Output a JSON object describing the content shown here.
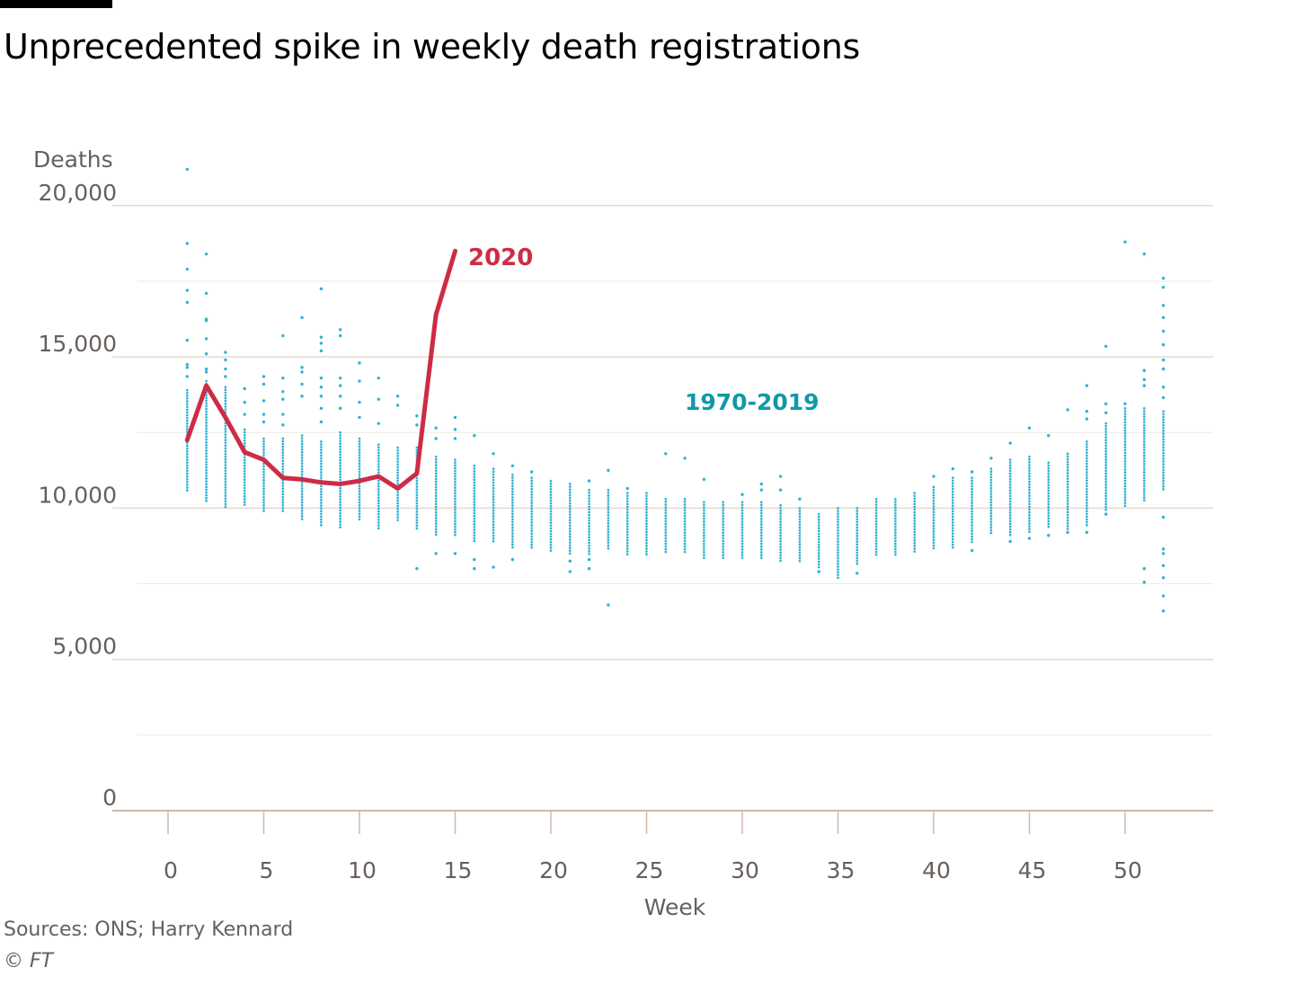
{
  "title": "Unprecedented spike in weekly death registrations",
  "source": "Sources: ONS; Harry Kennard",
  "copyright": "© FT",
  "colors": {
    "line_2020": "#cc2c45",
    "historic": "#2fb3d4",
    "historic_label": "#0f99a8",
    "grid": "#e6d9ce",
    "axis_text": "#66605c"
  },
  "chart_data": {
    "type": "scatter",
    "title": "Unprecedented spike in weekly death registrations",
    "xlabel": "Week",
    "ylabel": "Deaths",
    "xlim": [
      -1.5,
      54
    ],
    "ylim": [
      0,
      22000
    ],
    "x_ticks": [
      0,
      5,
      10,
      15,
      20,
      25,
      30,
      35,
      40,
      45,
      50
    ],
    "x_tick_labels": [
      "0",
      "5",
      "10",
      "15",
      "20",
      "25",
      "30",
      "35",
      "40",
      "45",
      "50"
    ],
    "y_ticks": [
      0,
      5000,
      10000,
      15000,
      20000
    ],
    "y_tick_labels": [
      "0",
      "5,000",
      "10,000",
      "15,000",
      "20,000"
    ],
    "y_minor_grid": [
      2500,
      7500,
      12500,
      17500
    ],
    "grid": true,
    "series": [
      {
        "name": "2020",
        "kind": "line",
        "x": [
          1,
          2,
          3,
          4,
          5,
          6,
          7,
          8,
          9,
          10,
          11,
          12,
          13,
          14,
          15
        ],
        "y": [
          12250,
          14050,
          13000,
          11850,
          11600,
          11000,
          10950,
          10850,
          10800,
          10900,
          11050,
          10650,
          11150,
          16400,
          18500
        ]
      },
      {
        "name": "1970-2019",
        "kind": "dots",
        "weeks": [
          {
            "week": 1,
            "min": 10500,
            "max": 13900,
            "outliers": [
              21200,
              18750,
              17900,
              17200,
              16800,
              15550,
              14750,
              14650,
              14350
            ]
          },
          {
            "week": 2,
            "min": 10200,
            "max": 14200,
            "outliers": [
              18400,
              17100,
              16250,
              16200,
              15600,
              15100,
              14600,
              14500
            ]
          },
          {
            "week": 3,
            "min": 10000,
            "max": 14000,
            "outliers": [
              15150,
              14900,
              14600,
              14350
            ]
          },
          {
            "week": 4,
            "min": 10050,
            "max": 12600,
            "outliers": [
              13950,
              13500,
              13100
            ]
          },
          {
            "week": 5,
            "min": 9900,
            "max": 12300,
            "outliers": [
              14350,
              14100,
              13550,
              13100,
              12850
            ]
          },
          {
            "week": 6,
            "min": 9900,
            "max": 12300,
            "outliers": [
              15700,
              14300,
              13850,
              13600,
              13100,
              12750
            ]
          },
          {
            "week": 7,
            "min": 9600,
            "max": 12400,
            "outliers": [
              16300,
              14650,
              14500,
              14100,
              13700
            ]
          },
          {
            "week": 8,
            "min": 9400,
            "max": 12200,
            "outliers": [
              17250,
              15650,
              15450,
              15200,
              14300,
              14000,
              13700,
              13300,
              12850
            ]
          },
          {
            "week": 9,
            "min": 9300,
            "max": 12500,
            "outliers": [
              15900,
              15700,
              14300,
              14050,
              13700,
              13300
            ]
          },
          {
            "week": 10,
            "min": 9600,
            "max": 12300,
            "outliers": [
              14800,
              14200,
              13500,
              13000
            ]
          },
          {
            "week": 11,
            "min": 9300,
            "max": 12100,
            "outliers": [
              14300,
              13600,
              12800
            ]
          },
          {
            "week": 12,
            "min": 9600,
            "max": 12000,
            "outliers": [
              13700,
              13400
            ]
          },
          {
            "week": 13,
            "min": 9300,
            "max": 12000,
            "outliers": [
              13050,
              12750,
              8000
            ]
          },
          {
            "week": 14,
            "min": 9100,
            "max": 11700,
            "outliers": [
              12650,
              12300,
              8500
            ]
          },
          {
            "week": 15,
            "min": 9100,
            "max": 11600,
            "outliers": [
              13000,
              12600,
              12300,
              8500
            ]
          },
          {
            "week": 16,
            "min": 8900,
            "max": 11400,
            "outliers": [
              12400,
              8300,
              8000
            ]
          },
          {
            "week": 17,
            "min": 8900,
            "max": 11300,
            "outliers": [
              11800,
              8050
            ]
          },
          {
            "week": 18,
            "min": 8700,
            "max": 11100,
            "outliers": [
              11400,
              8300
            ]
          },
          {
            "week": 19,
            "min": 8700,
            "max": 11000,
            "outliers": [
              11200
            ]
          },
          {
            "week": 20,
            "min": 8600,
            "max": 10900,
            "outliers": []
          },
          {
            "week": 21,
            "min": 8500,
            "max": 10800,
            "outliers": [
              8250,
              7900
            ]
          },
          {
            "week": 22,
            "min": 8400,
            "max": 10600,
            "outliers": [
              10900,
              8300,
              8000
            ]
          },
          {
            "week": 23,
            "min": 8600,
            "max": 10600,
            "outliers": [
              11250,
              6800
            ]
          },
          {
            "week": 24,
            "min": 8400,
            "max": 10500,
            "outliers": [
              10650
            ]
          },
          {
            "week": 25,
            "min": 8400,
            "max": 10500,
            "outliers": []
          },
          {
            "week": 26,
            "min": 8500,
            "max": 10300,
            "outliers": [
              11800
            ]
          },
          {
            "week": 27,
            "min": 8500,
            "max": 10300,
            "outliers": [
              11650
            ]
          },
          {
            "week": 28,
            "min": 8300,
            "max": 10200,
            "outliers": [
              10950
            ]
          },
          {
            "week": 29,
            "min": 8300,
            "max": 10200,
            "outliers": []
          },
          {
            "week": 30,
            "min": 8300,
            "max": 10200,
            "outliers": [
              10450
            ]
          },
          {
            "week": 31,
            "min": 8300,
            "max": 10200,
            "outliers": [
              10800,
              10600
            ]
          },
          {
            "week": 32,
            "min": 8200,
            "max": 10100,
            "outliers": [
              11050,
              10600
            ]
          },
          {
            "week": 33,
            "min": 8200,
            "max": 10000,
            "outliers": [
              10300
            ]
          },
          {
            "week": 34,
            "min": 8000,
            "max": 9800,
            "outliers": [
              7900
            ]
          },
          {
            "week": 35,
            "min": 7700,
            "max": 10000,
            "outliers": []
          },
          {
            "week": 36,
            "min": 8100,
            "max": 10000,
            "outliers": [
              7850
            ]
          },
          {
            "week": 37,
            "min": 8400,
            "max": 10300,
            "outliers": []
          },
          {
            "week": 38,
            "min": 8400,
            "max": 10300,
            "outliers": []
          },
          {
            "week": 39,
            "min": 8500,
            "max": 10500,
            "outliers": []
          },
          {
            "week": 40,
            "min": 8600,
            "max": 10700,
            "outliers": [
              11050
            ]
          },
          {
            "week": 41,
            "min": 8700,
            "max": 11000,
            "outliers": [
              11300
            ]
          },
          {
            "week": 42,
            "min": 8800,
            "max": 11000,
            "outliers": [
              11200,
              8600
            ]
          },
          {
            "week": 43,
            "min": 9100,
            "max": 11300,
            "outliers": [
              11650
            ]
          },
          {
            "week": 44,
            "min": 9100,
            "max": 11600,
            "outliers": [
              12150,
              8900
            ]
          },
          {
            "week": 45,
            "min": 9200,
            "max": 11700,
            "outliers": [
              12650,
              9000
            ]
          },
          {
            "week": 46,
            "min": 9300,
            "max": 11500,
            "outliers": [
              12400,
              9100
            ]
          },
          {
            "week": 47,
            "min": 9300,
            "max": 11800,
            "outliers": [
              13250,
              9200
            ]
          },
          {
            "week": 48,
            "min": 9400,
            "max": 12200,
            "outliers": [
              14050,
              13200,
              12950,
              9200
            ]
          },
          {
            "week": 49,
            "min": 9900,
            "max": 12800,
            "outliers": [
              15350,
              13450,
              13150,
              9800
            ]
          },
          {
            "week": 50,
            "min": 10000,
            "max": 13300,
            "outliers": [
              18800,
              13450
            ]
          },
          {
            "week": 51,
            "min": 10200,
            "max": 13300,
            "outliers": [
              18400,
              14550,
              14250,
              14050,
              8000,
              7550
            ]
          },
          {
            "week": 52,
            "min": 10600,
            "max": 13200,
            "outliers": [
              17600,
              17300,
              16700,
              16300,
              15850,
              15400,
              14900,
              14600,
              14000,
              13650,
              9700,
              8650,
              8500,
              8100,
              7700,
              7100,
              6600
            ]
          }
        ]
      }
    ],
    "annotations": [
      {
        "text": "2020",
        "series": "2020"
      },
      {
        "text": "1970-2019",
        "series": "1970-2019"
      }
    ]
  }
}
